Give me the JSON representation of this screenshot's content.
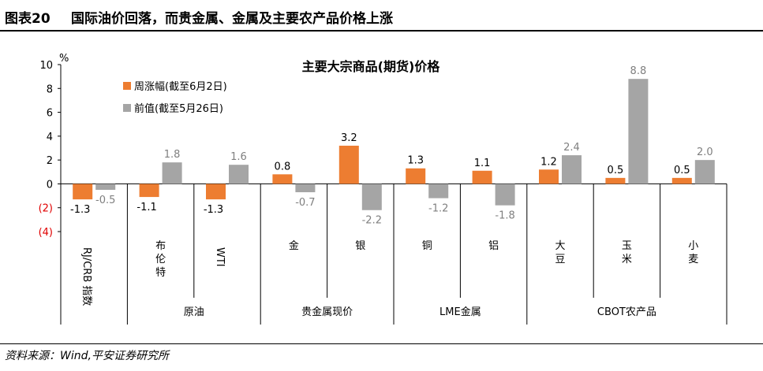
{
  "header": {
    "figure_label": "图表20",
    "figure_title": "国际油价回落，而贵金属、金属及主要农产品价格上涨"
  },
  "source": "资料来源：Wind,平安证券研究所",
  "colors": {
    "series_1": "#ED7D31",
    "series_2": "#A5A5A5",
    "negative_tick": "#E00000",
    "axis": "#000000"
  },
  "chart_data": {
    "type": "bar",
    "title": "主要大宗商品(期货)价格",
    "ylabel": "%",
    "ylim": [
      -4,
      10
    ],
    "yticks": [
      10,
      8,
      6,
      4,
      2,
      0,
      -2,
      -4
    ],
    "ytick_labels": [
      "10",
      "8",
      "6",
      "4",
      "2",
      "0",
      "(2)",
      "(4)"
    ],
    "legend_position": "top-left",
    "grid": false,
    "categories": [
      "RJ/CRB 指数",
      "布伦特",
      "WTI",
      "金",
      "银",
      "铜",
      "铝",
      "大豆",
      "玉米",
      "小麦"
    ],
    "category_labels": [
      {
        "text": "RJ/CRB 指数",
        "rotated": true
      },
      {
        "text": "布伦特",
        "rotated": false
      },
      {
        "text": "WTI",
        "rotated": true
      },
      {
        "text": "金",
        "rotated": false
      },
      {
        "text": "银",
        "rotated": false
      },
      {
        "text": "铜",
        "rotated": false
      },
      {
        "text": "铝",
        "rotated": false
      },
      {
        "text": "大豆",
        "rotated": false
      },
      {
        "text": "玉米",
        "rotated": false
      },
      {
        "text": "小麦",
        "rotated": false
      }
    ],
    "groups": [
      {
        "label": "",
        "span": [
          0,
          0
        ]
      },
      {
        "label": "原油",
        "span": [
          1,
          2
        ]
      },
      {
        "label": "贵金属现价",
        "span": [
          3,
          4
        ]
      },
      {
        "label": "LME金属",
        "span": [
          5,
          6
        ]
      },
      {
        "label": "CBOT农产品",
        "span": [
          7,
          9
        ]
      }
    ],
    "series": [
      {
        "name": "周涨幅(截至6月2日)",
        "values": [
          -1.3,
          -1.1,
          -1.3,
          0.8,
          3.2,
          1.3,
          1.1,
          1.2,
          0.5,
          0.5
        ],
        "labels": [
          "-1.3",
          "-1.1",
          "-1.3",
          "0.8",
          "3.2",
          "1.3",
          "1.1",
          "1.2",
          "0.5",
          "0.5"
        ]
      },
      {
        "name": "前值(截至5月26日)",
        "values": [
          -0.5,
          1.8,
          1.6,
          -0.7,
          -2.2,
          -1.2,
          -1.8,
          2.4,
          8.8,
          2.0
        ],
        "labels": [
          "-0.5",
          "1.8",
          "1.6",
          "-0.7",
          "-2.2",
          "-1.2",
          "-1.8",
          "2.4",
          "8.8",
          "2.0"
        ]
      }
    ]
  }
}
